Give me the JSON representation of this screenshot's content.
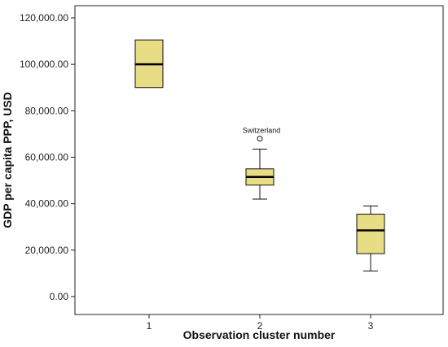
{
  "chart_data": {
    "type": "boxplot",
    "xlabel": "Observation cluster number",
    "ylabel": "GDP per capita PPP, USD",
    "ylim": [
      0,
      120000
    ],
    "y_ticks": [
      0,
      20000,
      40000,
      60000,
      80000,
      100000,
      120000
    ],
    "y_tick_labels": [
      "0.00",
      "20,000.00",
      "40,000.00",
      "60,000.00",
      "80,000.00",
      "100,000.00",
      "120,000.00"
    ],
    "categories": [
      "1",
      "2",
      "3"
    ],
    "box_color": "#e8dc84",
    "grid": false,
    "boxes": [
      {
        "category": "1",
        "min": 90000,
        "q1": 90000,
        "median": 100000,
        "q3": 110500,
        "max": 110500,
        "outliers": []
      },
      {
        "category": "2",
        "min": 42000,
        "q1": 48000,
        "median": 51500,
        "q3": 55000,
        "max": 63500,
        "outliers": [
          {
            "value": 68000,
            "label": "Switzerland"
          }
        ]
      },
      {
        "category": "3",
        "min": 11000,
        "q1": 18500,
        "median": 28500,
        "q3": 35500,
        "max": 39000,
        "outliers": []
      }
    ]
  }
}
